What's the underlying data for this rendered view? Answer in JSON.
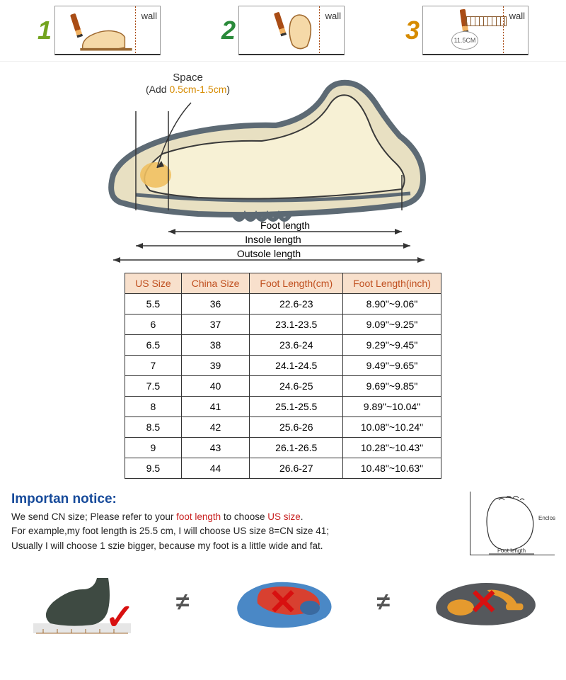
{
  "steps": {
    "num1": "1",
    "color1": "#73a41f",
    "num2": "2",
    "color2": "#2a8a3a",
    "num3": "3",
    "color3": "#d68b00",
    "wall_label": "wall",
    "circle_text": "11.5CM"
  },
  "diagram": {
    "space_title": "Space",
    "space_sub_prefix": "(Add ",
    "space_sub_hl": "0.5cm-1.5cm",
    "space_sub_suffix": ")",
    "foot_length": "Foot length",
    "insole_length": "Insole length",
    "outsole_length": "Outsole length",
    "colors": {
      "outline": "#5d6a74",
      "foot_fill": "#f7f1d5",
      "foot_stroke": "#3a3a3a",
      "shoe_fill": "#e8e0c2",
      "arrow": "#333333"
    }
  },
  "table": {
    "header_bg": "#f8e0cc",
    "header_color": "#c05020",
    "columns": [
      "US Size",
      "China Size",
      "Foot Length(cm)",
      "Foot Length(inch)"
    ],
    "rows": [
      [
        "5.5",
        "36",
        "22.6-23",
        "8.90\"~9.06\""
      ],
      [
        "6",
        "37",
        "23.1-23.5",
        "9.09\"~9.25\""
      ],
      [
        "6.5",
        "38",
        "23.6-24",
        "9.29\"~9.45\""
      ],
      [
        "7",
        "39",
        "24.1-24.5",
        "9.49\"~9.65\""
      ],
      [
        "7.5",
        "40",
        "24.6-25",
        "9.69\"~9.85\""
      ],
      [
        "8",
        "41",
        "25.1-25.5",
        "9.89\"~10.04\""
      ],
      [
        "8.5",
        "42",
        "25.6-26",
        "10.08\"~10.24\""
      ],
      [
        "9",
        "43",
        "26.1-26.5",
        "10.28\"~10.43\""
      ],
      [
        "9.5",
        "44",
        "26.6-27",
        "10.48\"~10.63\""
      ]
    ]
  },
  "notice": {
    "title": "Importan notice:",
    "line1_a": "We send CN size; Please refer to your ",
    "line1_hl1": "foot length",
    "line1_b": " to choose ",
    "line1_hl2": "US size",
    "line1_c": ".",
    "line2": "For example,my foot length is 25.5 cm, I will choose US size 8=CN size 41;",
    "line3": "Usually I will choose 1 szie bigger, because my foot is a little wide and fat.",
    "draw_enclose": "Enclose",
    "draw_footlen": "Foot length"
  },
  "compare": {
    "check": "✓",
    "cross": "✕",
    "neq": "≠",
    "colors": {
      "sock": "#3e4a42",
      "insole_a": "#4a88c6",
      "insole_b": "#d84030",
      "slipper_body": "#55585c",
      "slipper_accent": "#e59a2e"
    }
  }
}
